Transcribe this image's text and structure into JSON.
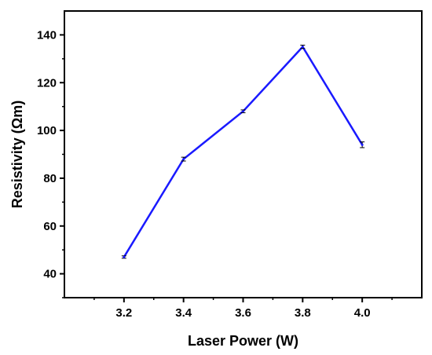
{
  "chart_data": {
    "type": "line",
    "title": "",
    "xlabel": "Laser Power (W)",
    "ylabel": "Resistivity (Ωm)",
    "x": [
      3.2,
      3.4,
      3.6,
      3.8,
      4.0
    ],
    "x_tick_labels": [
      "3.2",
      "3.4",
      "3.6",
      "3.8",
      "4.0"
    ],
    "y_tick_labels": [
      "40",
      "60",
      "80",
      "100",
      "120",
      "140"
    ],
    "xlim": [
      3.0,
      4.2
    ],
    "ylim": [
      30,
      150
    ],
    "grid": false,
    "legend": "none",
    "series": [
      {
        "values": [
          47,
          88,
          108,
          135,
          94
        ],
        "errors": [
          0.5,
          0.8,
          0.6,
          0.7,
          1.2
        ],
        "color": "#1a1aff"
      }
    ]
  }
}
